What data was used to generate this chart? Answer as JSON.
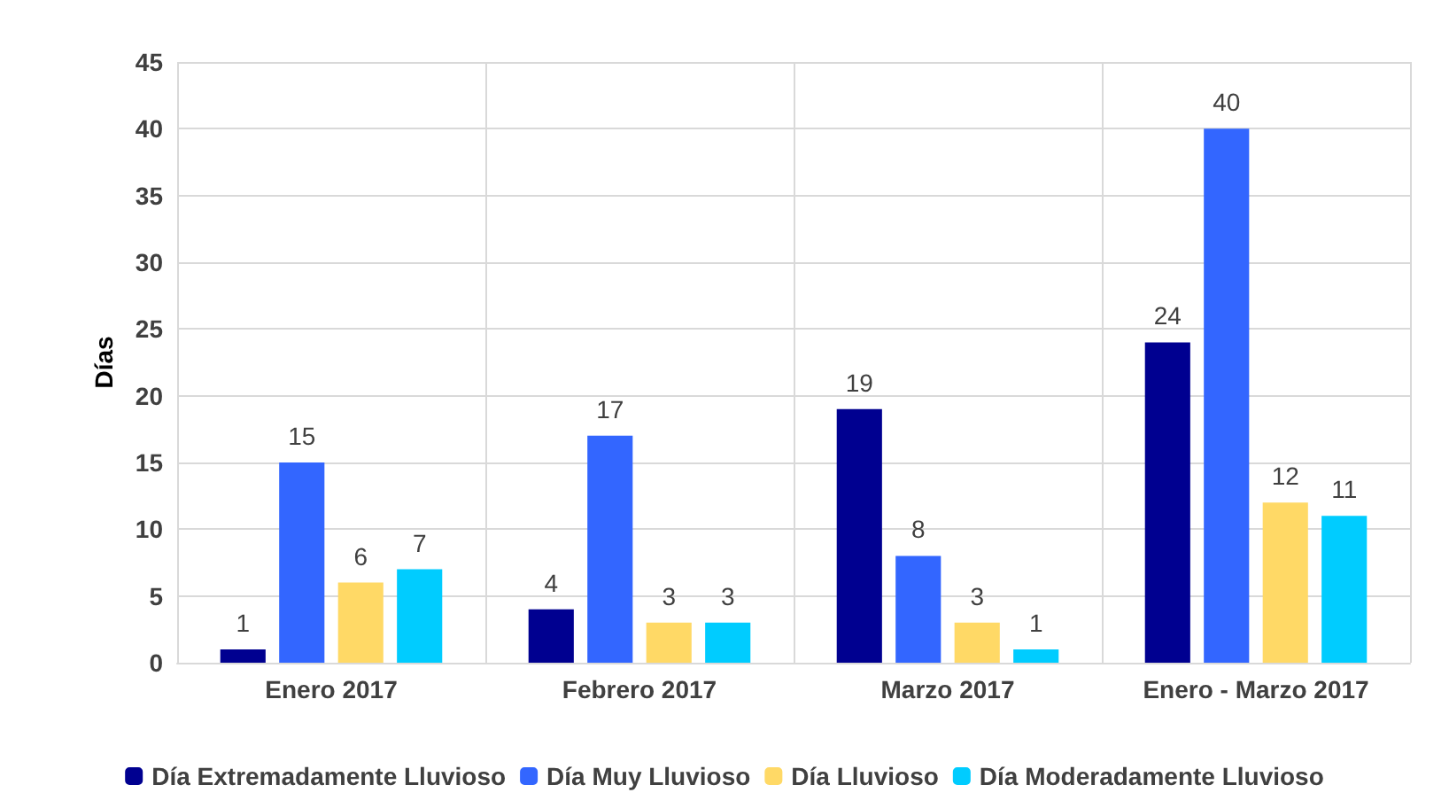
{
  "chart_data": {
    "type": "bar",
    "ylabel": "Días",
    "categories": [
      "Enero 2017",
      "Febrero 2017",
      "Marzo 2017",
      "Enero - Marzo 2017"
    ],
    "series": [
      {
        "name": "Día Extremadamente Lluvioso",
        "color": "#000090",
        "values": [
          1,
          4,
          19,
          24
        ]
      },
      {
        "name": "Día Muy Lluvioso",
        "color": "#3366ff",
        "values": [
          15,
          17,
          8,
          40
        ]
      },
      {
        "name": "Día Lluvioso",
        "color": "#ffd966",
        "values": [
          6,
          3,
          3,
          12
        ]
      },
      {
        "name": "Día Moderadamente Lluvioso",
        "color": "#00ccff",
        "values": [
          7,
          3,
          1,
          11
        ]
      }
    ],
    "ylim": [
      0,
      45
    ],
    "yticks": [
      0,
      5,
      10,
      15,
      20,
      25,
      30,
      35,
      40,
      45
    ],
    "grid": true,
    "legend": "bottom",
    "data_labels": true
  }
}
